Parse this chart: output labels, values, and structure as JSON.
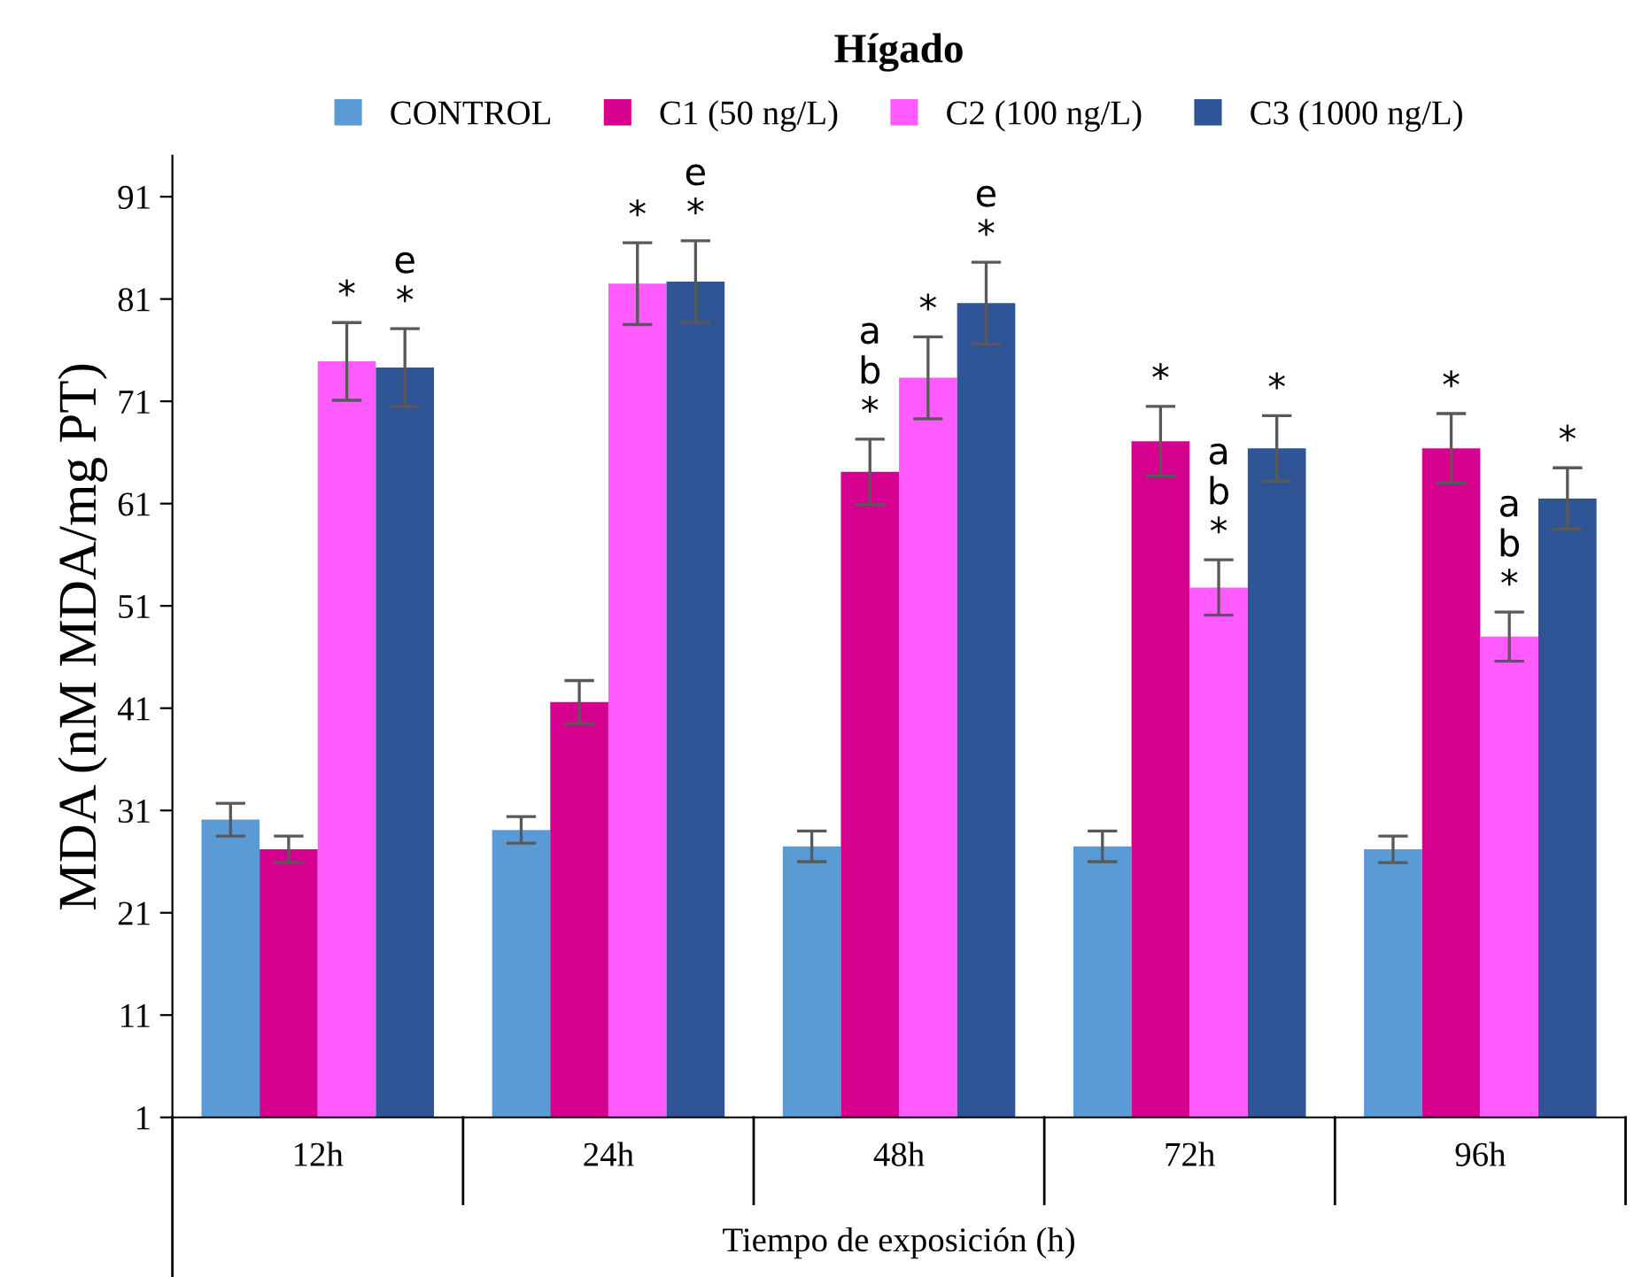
{
  "chart_data": {
    "type": "bar",
    "title": "Hígado",
    "xlabel": "Tiempo de exposición (h)",
    "ylabel": "MDA (nM MDA/mg PT)",
    "categories": [
      "12h",
      "24h",
      "48h",
      "72h",
      "96h"
    ],
    "series": [
      {
        "name": "CONTROL",
        "color": "#5b9bd5",
        "values": [
          30.1,
          29.1,
          27.5,
          27.5,
          27.2
        ],
        "errors": [
          1.6,
          1.3,
          1.5,
          1.5,
          1.3
        ],
        "value_labels": [
          null,
          null,
          null,
          null,
          null
        ]
      },
      {
        "name": "C1 (50 ng/L)",
        "color": "#d6008f",
        "values": [
          27.2,
          41.6,
          64.1,
          67.1,
          66.4
        ],
        "errors": [
          1.3,
          2.1,
          3.2,
          3.4,
          3.4
        ],
        "value_labels": [
          null,
          null,
          "a\nb\n*",
          "*",
          "*"
        ]
      },
      {
        "name": "C2 (100 ng/L)",
        "color": "#ff5bff",
        "values": [
          74.9,
          82.5,
          73.3,
          52.8,
          48.0
        ],
        "errors": [
          3.8,
          4.0,
          4.0,
          2.7,
          2.4
        ],
        "value_labels": [
          "*",
          "*",
          "*",
          "a\nb\n*",
          "a\nb\n*"
        ]
      },
      {
        "name": "C3 (1000 ng/L)",
        "color": "#2f5597",
        "values": [
          74.3,
          82.7,
          80.6,
          66.4,
          61.5
        ],
        "errors": [
          3.8,
          4.0,
          4.0,
          3.2,
          3.0
        ],
        "value_labels": [
          "e\n*",
          "e\n*",
          "e\n*",
          "*",
          "*"
        ]
      }
    ],
    "ylim": [
      1,
      95
    ],
    "yticks": [
      1,
      11,
      21,
      31,
      41,
      51,
      61,
      71,
      81,
      91
    ],
    "grid": false,
    "legend": "top"
  }
}
